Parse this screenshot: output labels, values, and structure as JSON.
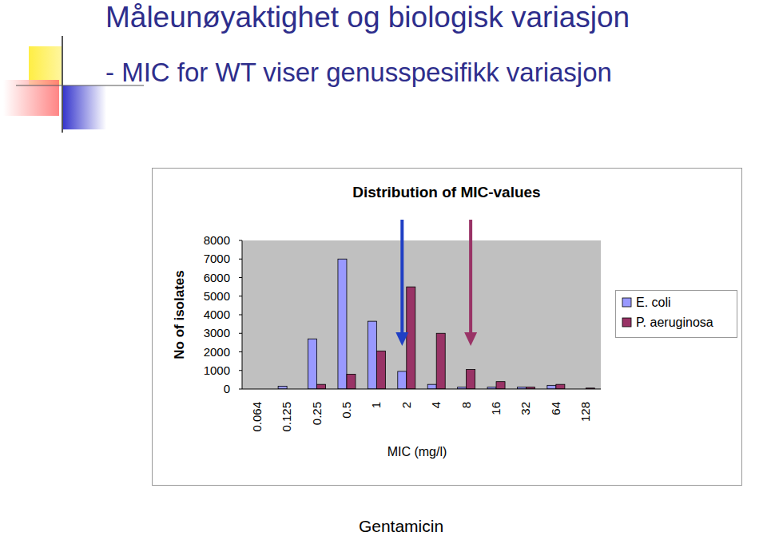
{
  "page": {
    "title": "Måleunøyaktighet og biologisk variasjon",
    "subtitle": "- MIC for WT viser genusspesifikk variasjon",
    "caption": "Gentamicin"
  },
  "chart_data": {
    "type": "bar",
    "title": "Distribution of MIC-values",
    "x_label": "MIC (mg/l)",
    "y_label": "No of isolates",
    "categories": [
      "0.064",
      "0.125",
      "0.25",
      "0.5",
      "1",
      "2",
      "4",
      "8",
      "16",
      "32",
      "64",
      "128"
    ],
    "series": [
      {
        "name": "E. coli",
        "color": "#9999ff",
        "values": [
          0,
          150,
          2700,
          7000,
          3650,
          950,
          250,
          100,
          100,
          100,
          200,
          0
        ]
      },
      {
        "name": "P. aeruginosa",
        "color": "#993366",
        "values": [
          0,
          0,
          250,
          800,
          2050,
          5500,
          3000,
          1050,
          400,
          100,
          250,
          50
        ]
      }
    ],
    "annotations": [
      {
        "x": "2",
        "series": "E. coli",
        "color": "#1f3fc4"
      },
      {
        "x": "8",
        "series": "P. aeruginosa",
        "color": "#993366"
      }
    ],
    "ylim": [
      0,
      8000
    ],
    "yticks": [
      0,
      1000,
      2000,
      3000,
      4000,
      5000,
      6000,
      7000,
      8000
    ],
    "grid": false,
    "legend": "right"
  }
}
